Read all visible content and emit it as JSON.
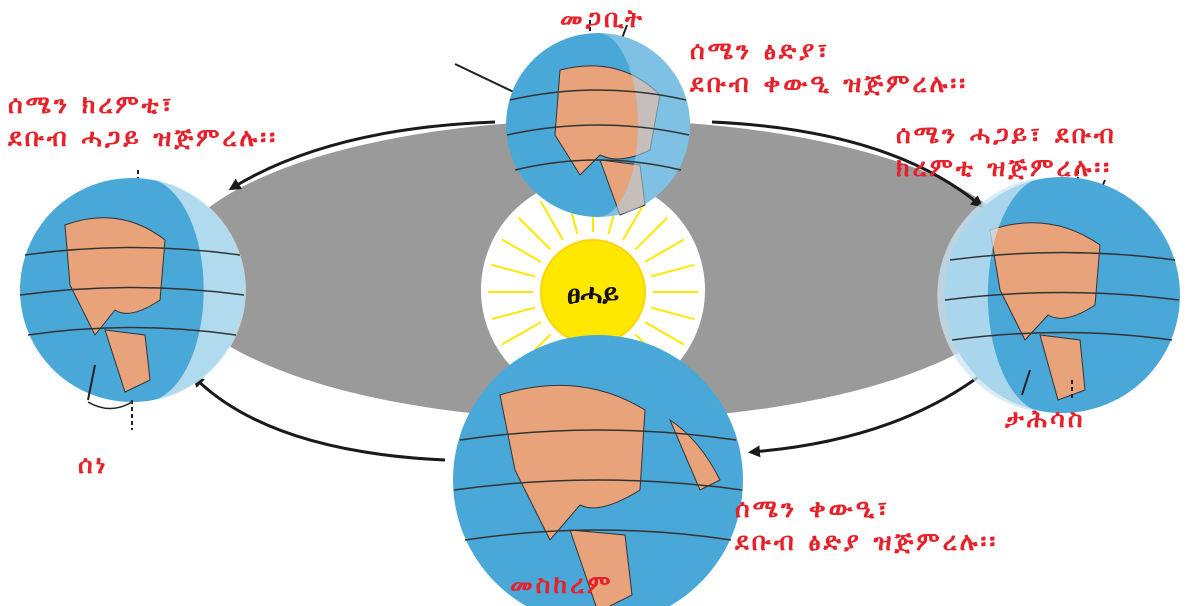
{
  "colors": {
    "orbit": "#9a9a9a",
    "sun": "#ffe800",
    "sun_glow": "#fff9d0",
    "ocean": "#4aa8d8",
    "land": "#e8a37a",
    "night": "#a9d6ee",
    "label": "#e8202a"
  },
  "sun": {
    "label": "ፀሓይ"
  },
  "earths": {
    "top": {
      "name": "መጋቢት",
      "note": [
        "ሰሜን ፅድያ፣",
        "ደቡብ ቀውዒ ዝጅምረሉ፡፡"
      ]
    },
    "right": {
      "name": "ታሕሳስ",
      "note": [
        "ሰሜን ሓጋይ፣ ደቡብ",
        "ክረምቲ ዝጅምረሉ፡፡"
      ]
    },
    "bottom": {
      "name": "መስከረም",
      "note": [
        "ሰሜን ቀውዒ፣",
        "ደቡብ ፅድያ ዝጅምረሉ፡፡"
      ]
    },
    "left": {
      "name": "ሰነ",
      "note": [
        "ሰሜን ክረምቲ፣",
        "ደቡብ ሓጋይ ዝጅምረሉ፡፡"
      ]
    }
  }
}
